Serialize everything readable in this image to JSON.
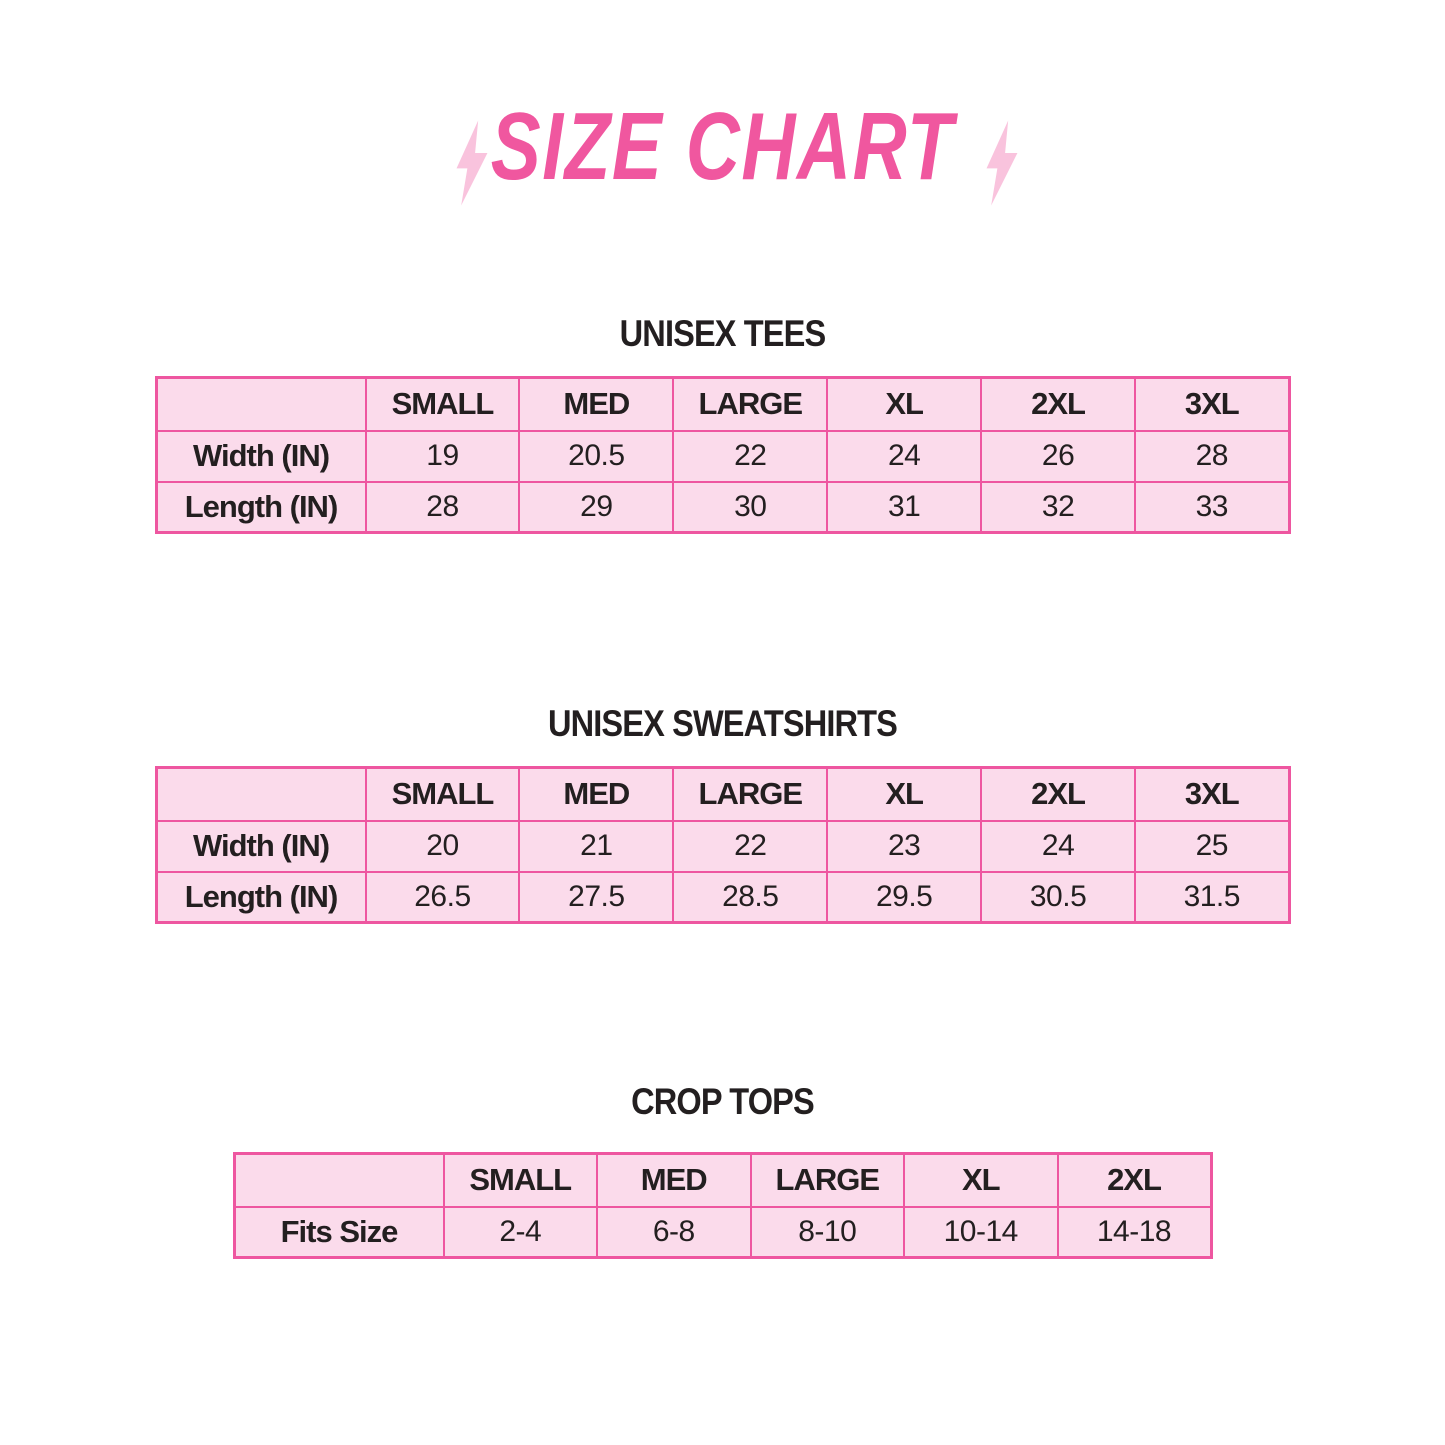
{
  "title": "SIZE CHART",
  "colors": {
    "title_pink": "#F0579F",
    "bolt_pink": "#F9C3DD",
    "table_border_pink": "#EE56A0",
    "cell_fill_pink": "#FBDBEB",
    "text_black": "#231F20",
    "background": "#FFFFFF"
  },
  "icons": {
    "left": "lightning-bolt-icon",
    "right": "lightning-bolt-icon"
  },
  "tables": [
    {
      "heading": "UNISEX TEES",
      "columns": [
        "SMALL",
        "MED",
        "LARGE",
        "XL",
        "2XL",
        "3XL"
      ],
      "rows": [
        {
          "label": "Width (IN)",
          "values": [
            "19",
            "20.5",
            "22",
            "24",
            "26",
            "28"
          ]
        },
        {
          "label": "Length (IN)",
          "values": [
            "28",
            "29",
            "30",
            "31",
            "32",
            "33"
          ]
        }
      ]
    },
    {
      "heading": "UNISEX SWEATSHIRTS",
      "columns": [
        "SMALL",
        "MED",
        "LARGE",
        "XL",
        "2XL",
        "3XL"
      ],
      "rows": [
        {
          "label": "Width (IN)",
          "values": [
            "20",
            "21",
            "22",
            "23",
            "24",
            "25"
          ]
        },
        {
          "label": "Length (IN)",
          "values": [
            "26.5",
            "27.5",
            "28.5",
            "29.5",
            "30.5",
            "31.5"
          ]
        }
      ]
    },
    {
      "heading": "CROP TOPS",
      "columns": [
        "SMALL",
        "MED",
        "LARGE",
        "XL",
        "2XL"
      ],
      "rows": [
        {
          "label": "Fits Size",
          "values": [
            "2-4",
            "6-8",
            "8-10",
            "10-14",
            "14-18"
          ]
        }
      ]
    }
  ]
}
